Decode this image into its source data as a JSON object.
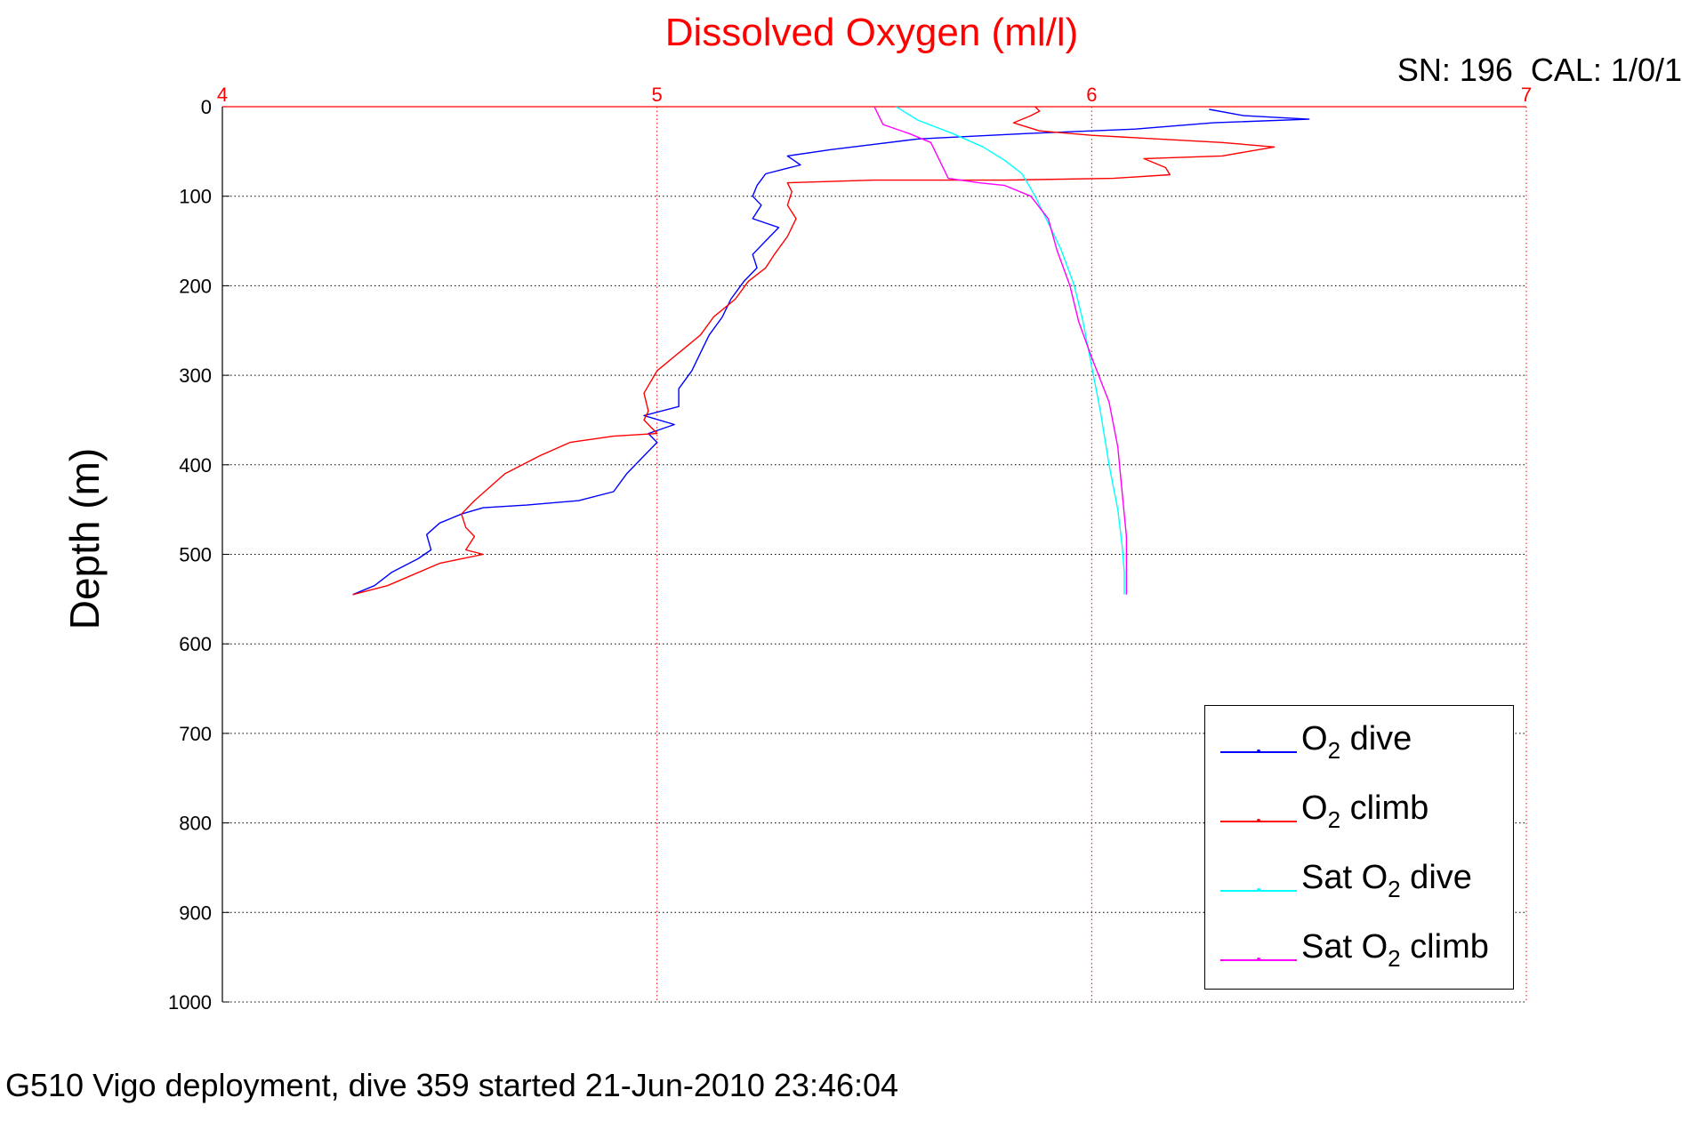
{
  "chart_data": {
    "type": "line",
    "title": "Dissolved Oxygen (ml/l)",
    "ylabel": "Depth (m)",
    "xlabel": "",
    "xlim": [
      4,
      7
    ],
    "ylim": [
      0,
      1000
    ],
    "y_reversed": true,
    "x_axis_position": "top",
    "x_ticks": [
      "4",
      "5",
      "6",
      "7"
    ],
    "y_ticks": [
      "0",
      "100",
      "200",
      "300",
      "400",
      "500",
      "600",
      "700",
      "800",
      "900",
      "1000"
    ],
    "grid": true,
    "legend_position": "bottom-right",
    "series": [
      {
        "name": "O2 dive",
        "color": "#0000ff",
        "points": [
          [
            6.27,
            3
          ],
          [
            6.35,
            10
          ],
          [
            6.5,
            14
          ],
          [
            6.28,
            18
          ],
          [
            6.1,
            25
          ],
          [
            5.85,
            30
          ],
          [
            5.6,
            36
          ],
          [
            5.5,
            42
          ],
          [
            5.4,
            48
          ],
          [
            5.3,
            55
          ],
          [
            5.33,
            65
          ],
          [
            5.25,
            75
          ],
          [
            5.23,
            88
          ],
          [
            5.22,
            100
          ],
          [
            5.24,
            110
          ],
          [
            5.22,
            125
          ],
          [
            5.28,
            135
          ],
          [
            5.25,
            150
          ],
          [
            5.22,
            165
          ],
          [
            5.23,
            180
          ],
          [
            5.2,
            195
          ],
          [
            5.17,
            215
          ],
          [
            5.15,
            235
          ],
          [
            5.12,
            255
          ],
          [
            5.1,
            275
          ],
          [
            5.08,
            295
          ],
          [
            5.05,
            315
          ],
          [
            5.05,
            335
          ],
          [
            4.97,
            345
          ],
          [
            5.04,
            355
          ],
          [
            4.98,
            365
          ],
          [
            5.0,
            375
          ],
          [
            4.97,
            390
          ],
          [
            4.93,
            410
          ],
          [
            4.9,
            430
          ],
          [
            4.82,
            440
          ],
          [
            4.7,
            445
          ],
          [
            4.6,
            448
          ],
          [
            4.55,
            455
          ],
          [
            4.5,
            465
          ],
          [
            4.47,
            478
          ],
          [
            4.48,
            495
          ],
          [
            4.45,
            505
          ],
          [
            4.39,
            520
          ],
          [
            4.35,
            535
          ],
          [
            4.3,
            545
          ]
        ]
      },
      {
        "name": "O2 climb",
        "color": "#ff0000",
        "points": [
          [
            5.87,
            0
          ],
          [
            5.88,
            5
          ],
          [
            5.86,
            10
          ],
          [
            5.82,
            18
          ],
          [
            5.88,
            27
          ],
          [
            6.0,
            32
          ],
          [
            6.3,
            40
          ],
          [
            6.42,
            45
          ],
          [
            6.3,
            55
          ],
          [
            6.12,
            58
          ],
          [
            6.17,
            68
          ],
          [
            6.18,
            76
          ],
          [
            6.05,
            80
          ],
          [
            5.8,
            82
          ],
          [
            5.5,
            82
          ],
          [
            5.3,
            85
          ],
          [
            5.31,
            95
          ],
          [
            5.3,
            110
          ],
          [
            5.32,
            125
          ],
          [
            5.3,
            145
          ],
          [
            5.27,
            165
          ],
          [
            5.25,
            180
          ],
          [
            5.21,
            195
          ],
          [
            5.18,
            215
          ],
          [
            5.13,
            235
          ],
          [
            5.1,
            255
          ],
          [
            5.05,
            275
          ],
          [
            5.0,
            295
          ],
          [
            4.97,
            320
          ],
          [
            4.98,
            340
          ],
          [
            4.97,
            350
          ],
          [
            5.0,
            365
          ],
          [
            4.9,
            368
          ],
          [
            4.8,
            375
          ],
          [
            4.73,
            390
          ],
          [
            4.65,
            410
          ],
          [
            4.58,
            440
          ],
          [
            4.55,
            455
          ],
          [
            4.56,
            470
          ],
          [
            4.58,
            480
          ],
          [
            4.56,
            495
          ],
          [
            4.6,
            500
          ],
          [
            4.5,
            510
          ],
          [
            4.38,
            535
          ],
          [
            4.3,
            545
          ]
        ]
      },
      {
        "name": "Sat O2 dive",
        "color": "#00ffff",
        "points": [
          [
            5.55,
            0
          ],
          [
            5.6,
            15
          ],
          [
            5.68,
            30
          ],
          [
            5.75,
            45
          ],
          [
            5.8,
            60
          ],
          [
            5.84,
            75
          ],
          [
            5.87,
            100
          ],
          [
            5.9,
            130
          ],
          [
            5.93,
            160
          ],
          [
            5.96,
            200
          ],
          [
            5.98,
            240
          ],
          [
            6.0,
            290
          ],
          [
            6.02,
            340
          ],
          [
            6.04,
            400
          ],
          [
            6.06,
            450
          ],
          [
            6.07,
            490
          ],
          [
            6.075,
            520
          ],
          [
            6.075,
            545
          ]
        ]
      },
      {
        "name": "Sat O2 climb",
        "color": "#ff00ff",
        "points": [
          [
            5.5,
            0
          ],
          [
            5.52,
            20
          ],
          [
            5.58,
            30
          ],
          [
            5.63,
            40
          ],
          [
            5.65,
            60
          ],
          [
            5.67,
            80
          ],
          [
            5.74,
            85
          ],
          [
            5.8,
            88
          ],
          [
            5.86,
            100
          ],
          [
            5.9,
            125
          ],
          [
            5.92,
            160
          ],
          [
            5.95,
            200
          ],
          [
            5.97,
            240
          ],
          [
            6.0,
            280
          ],
          [
            6.04,
            330
          ],
          [
            6.06,
            380
          ],
          [
            6.07,
            430
          ],
          [
            6.08,
            480
          ],
          [
            6.08,
            520
          ],
          [
            6.08,
            545
          ]
        ]
      }
    ]
  },
  "labels": {
    "title": "Dissolved Oxygen (ml/l)",
    "sn_cal": "SN: 196  CAL: 1/0/1",
    "ylabel": "Depth (m)",
    "footer": "G510 Vigo deployment, dive 359 started 21-Jun-2010 23:46:04"
  },
  "legend": [
    {
      "prefix": "O",
      "sub": "2",
      "suffix": " dive",
      "color": "#0000ff"
    },
    {
      "prefix": "O",
      "sub": "2",
      "suffix": " climb",
      "color": "#ff0000"
    },
    {
      "prefix": "Sat O",
      "sub": "2",
      "suffix": " dive",
      "color": "#00ffff"
    },
    {
      "prefix": "Sat O",
      "sub": "2",
      "suffix": " climb",
      "color": "#ff00ff"
    }
  ]
}
